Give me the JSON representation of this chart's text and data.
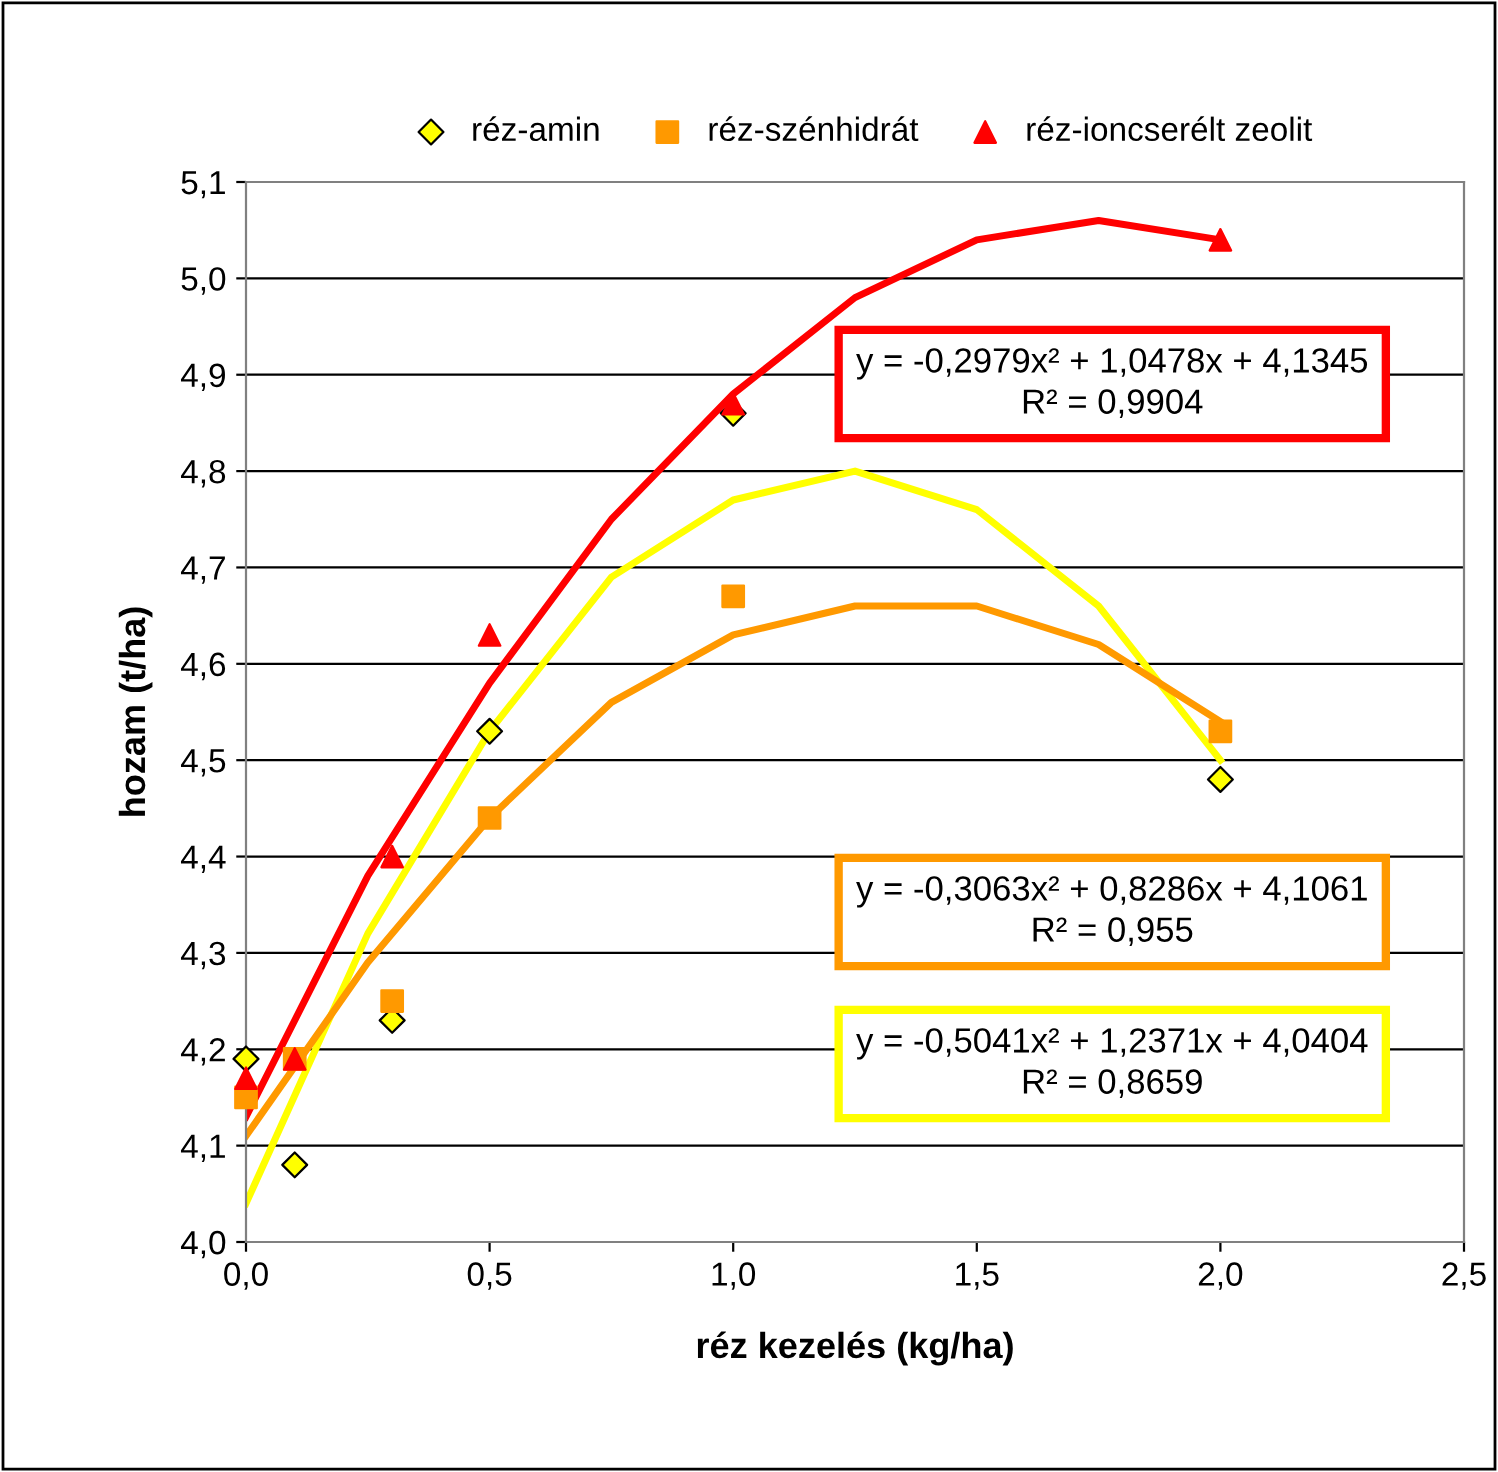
{
  "chart_data": {
    "type": "scatter",
    "xlabel": "réz kezelés (kg/ha)",
    "ylabel": "hozam (t/ha)",
    "xlim": [
      0,
      2.5
    ],
    "ylim": [
      4.0,
      5.1
    ],
    "xticks": [
      {
        "value": 0,
        "label": "0,0"
      },
      {
        "value": 0.5,
        "label": "0,5"
      },
      {
        "value": 1.0,
        "label": "1,0"
      },
      {
        "value": 1.5,
        "label": "1,5"
      },
      {
        "value": 2.0,
        "label": "2,0"
      },
      {
        "value": 2.5,
        "label": "2,5"
      }
    ],
    "yticks": [
      {
        "value": 4.0,
        "label": "4,0"
      },
      {
        "value": 4.1,
        "label": "4,1"
      },
      {
        "value": 4.2,
        "label": "4,2"
      },
      {
        "value": 4.3,
        "label": "4,3"
      },
      {
        "value": 4.4,
        "label": "4,4"
      },
      {
        "value": 4.5,
        "label": "4,5"
      },
      {
        "value": 4.6,
        "label": "4,6"
      },
      {
        "value": 4.7,
        "label": "4,7"
      },
      {
        "value": 4.8,
        "label": "4,8"
      },
      {
        "value": 4.9,
        "label": "4,9"
      },
      {
        "value": 5.0,
        "label": "5,0"
      },
      {
        "value": 5.1,
        "label": "5,1"
      }
    ],
    "grid": "y",
    "legend": "top",
    "series": [
      {
        "name": "réz-amin",
        "marker": "diamond",
        "color": "#ffff00",
        "x": [
          0,
          0.1,
          0.3,
          0.5,
          1.0,
          2.0
        ],
        "values": [
          4.19,
          4.08,
          4.23,
          4.53,
          4.86,
          4.48
        ]
      },
      {
        "name": "réz-szénhidrát",
        "marker": "square",
        "color": "#ff9900",
        "x": [
          0,
          0.1,
          0.3,
          0.5,
          1.0,
          2.0
        ],
        "values": [
          4.15,
          4.19,
          4.25,
          4.44,
          4.67,
          4.53
        ]
      },
      {
        "name": "réz-ioncserélt zeolit",
        "marker": "triangle",
        "color": "#ff0000",
        "x": [
          0,
          0.1,
          0.3,
          0.5,
          1.0,
          2.0
        ],
        "values": [
          4.17,
          4.19,
          4.4,
          4.63,
          4.87,
          5.04
        ]
      },
      {
        "type": "line",
        "color": "#ffff00",
        "x": [
          0,
          0.25,
          0.5,
          0.75,
          1.0,
          1.25,
          1.5,
          1.75,
          2.0
        ],
        "values": [
          4.04,
          4.32,
          4.53,
          4.69,
          4.77,
          4.8,
          4.76,
          4.66,
          4.5
        ]
      },
      {
        "type": "line",
        "color": "#ff9900",
        "x": [
          0,
          0.25,
          0.5,
          0.75,
          1.0,
          1.25,
          1.5,
          1.75,
          2.0
        ],
        "values": [
          4.11,
          4.29,
          4.44,
          4.56,
          4.63,
          4.66,
          4.66,
          4.62,
          4.54
        ]
      },
      {
        "type": "line",
        "color": "#ff0000",
        "x": [
          0,
          0.25,
          0.5,
          0.75,
          1.0,
          1.25,
          1.5,
          1.75,
          2.0
        ],
        "values": [
          4.13,
          4.38,
          4.58,
          4.75,
          4.88,
          4.98,
          5.04,
          5.06,
          5.04
        ]
      }
    ],
    "annotations": [
      "y = -0,2979x² + 1,0478x + 4,1345\nR² = 0,9904",
      "y = -0,3063x² + 0,8286x + 4,1061\nR² = 0,955",
      "y = -0,5041x² + 1,2371x + 4,0404\nR² = 0,8659"
    ]
  }
}
